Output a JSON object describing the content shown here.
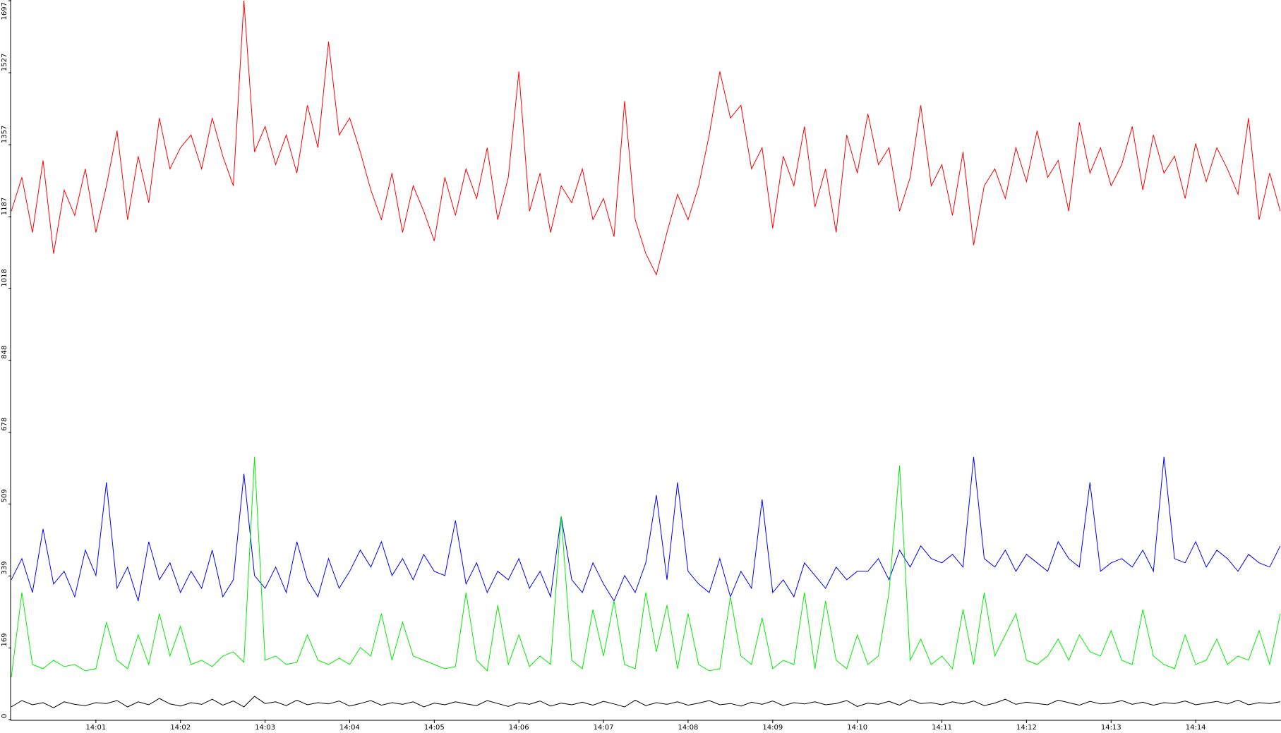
{
  "chart_data": {
    "type": "line",
    "x": [
      0,
      0.125,
      0.25,
      0.375,
      0.5,
      0.625,
      0.75,
      0.875,
      1,
      1.125,
      1.25,
      1.375,
      1.5,
      1.625,
      1.75,
      1.875,
      2,
      2.125,
      2.25,
      2.375,
      2.5,
      2.625,
      2.75,
      2.875,
      3,
      3.125,
      3.25,
      3.375,
      3.5,
      3.625,
      3.75,
      3.875,
      4,
      4.125,
      4.25,
      4.375,
      4.5,
      4.625,
      4.75,
      4.875,
      5,
      5.125,
      5.25,
      5.375,
      5.5,
      5.625,
      5.75,
      5.875,
      6,
      6.125,
      6.25,
      6.375,
      6.5,
      6.625,
      6.75,
      6.875,
      7,
      7.125,
      7.25,
      7.375,
      7.5,
      7.625,
      7.75,
      7.875,
      8,
      8.125,
      8.25,
      8.375,
      8.5,
      8.625,
      8.75,
      8.875,
      9,
      9.125,
      9.25,
      9.375,
      9.5,
      9.625,
      9.75,
      9.875,
      10,
      10.125,
      10.25,
      10.375,
      10.5,
      10.625,
      10.75,
      10.875,
      11,
      11.125,
      11.25,
      11.375,
      11.5,
      11.625,
      11.75,
      11.875,
      12,
      12.125,
      12.25,
      12.375,
      12.5,
      12.625,
      12.75,
      12.875,
      13,
      13.125,
      13.25,
      13.375,
      13.5,
      13.625,
      13.75,
      13.875,
      14,
      14.125,
      14.25,
      14.375,
      14.5,
      14.625,
      14.75,
      14.875,
      15
    ],
    "series": [
      {
        "color": "#ff0000",
        "values": [
          1200,
          1280,
          1150,
          1320,
          1100,
          1250,
          1190,
          1300,
          1150,
          1260,
          1390,
          1180,
          1330,
          1220,
          1420,
          1300,
          1350,
          1380,
          1300,
          1420,
          1330,
          1260,
          1697,
          1340,
          1400,
          1310,
          1380,
          1290,
          1450,
          1350,
          1600,
          1380,
          1420,
          1340,
          1250,
          1180,
          1290,
          1150,
          1260,
          1200,
          1130,
          1280,
          1190,
          1300,
          1230,
          1350,
          1180,
          1280,
          1530,
          1200,
          1290,
          1150,
          1260,
          1220,
          1300,
          1180,
          1230,
          1140,
          1460,
          1180,
          1100,
          1050,
          1150,
          1240,
          1180,
          1260,
          1380,
          1530,
          1420,
          1450,
          1300,
          1350,
          1160,
          1330,
          1260,
          1400,
          1210,
          1300,
          1150,
          1380,
          1290,
          1430,
          1310,
          1350,
          1200,
          1280,
          1450,
          1260,
          1310,
          1190,
          1340,
          1120,
          1260,
          1300,
          1230,
          1350,
          1270,
          1390,
          1280,
          1320,
          1200,
          1410,
          1290,
          1350,
          1260,
          1310,
          1400,
          1250,
          1380,
          1290,
          1330,
          1230,
          1360,
          1270,
          1350,
          1300,
          1240,
          1420,
          1180,
          1290,
          1200
        ]
      },
      {
        "color": "#0000ff",
        "values": [
          330,
          380,
          300,
          450,
          320,
          350,
          290,
          400,
          340,
          560,
          310,
          360,
          280,
          420,
          330,
          370,
          300,
          350,
          310,
          400,
          290,
          330,
          580,
          340,
          310,
          360,
          300,
          420,
          330,
          290,
          380,
          310,
          350,
          400,
          360,
          420,
          340,
          380,
          330,
          390,
          350,
          340,
          470,
          320,
          370,
          300,
          350,
          330,
          380,
          310,
          350,
          290,
          480,
          330,
          300,
          370,
          320,
          280,
          340,
          300,
          370,
          530,
          330,
          560,
          350,
          320,
          300,
          380,
          290,
          350,
          310,
          520,
          300,
          330,
          290,
          370,
          340,
          310,
          360,
          330,
          350,
          350,
          380,
          330,
          400,
          360,
          410,
          380,
          370,
          390,
          360,
          620,
          380,
          360,
          400,
          350,
          390,
          370,
          350,
          420,
          380,
          360,
          560,
          350,
          370,
          380,
          360,
          400,
          350,
          620,
          380,
          370,
          420,
          360,
          400,
          380,
          350,
          390,
          370,
          360,
          410
        ]
      },
      {
        "color": "#00ee00",
        "values": [
          100,
          300,
          130,
          120,
          140,
          125,
          130,
          115,
          120,
          230,
          140,
          120,
          200,
          130,
          250,
          150,
          220,
          130,
          140,
          125,
          150,
          160,
          135,
          620,
          140,
          150,
          130,
          135,
          200,
          140,
          130,
          145,
          130,
          170,
          150,
          250,
          140,
          230,
          150,
          140,
          130,
          120,
          125,
          300,
          140,
          115,
          270,
          130,
          200,
          125,
          150,
          130,
          480,
          140,
          120,
          260,
          150,
          280,
          130,
          120,
          300,
          160,
          270,
          120,
          250,
          130,
          115,
          120,
          290,
          150,
          130,
          240,
          120,
          140,
          130,
          300,
          120,
          280,
          140,
          120,
          200,
          130,
          150,
          300,
          600,
          140,
          190,
          130,
          150,
          120,
          260,
          130,
          300,
          150,
          200,
          250,
          140,
          130,
          150,
          190,
          140,
          200,
          160,
          150,
          210,
          140,
          130,
          260,
          150,
          130,
          120,
          200,
          130,
          140,
          190,
          130,
          150,
          140,
          210,
          130,
          250
        ]
      },
      {
        "color": "#000000",
        "values": [
          30,
          45,
          35,
          40,
          28,
          42,
          36,
          33,
          40,
          38,
          45,
          30,
          42,
          35,
          50,
          37,
          32,
          40,
          36,
          48,
          34,
          44,
          30,
          55,
          38,
          42,
          33,
          46,
          35,
          40,
          37,
          44,
          32,
          38,
          45,
          34,
          40,
          36,
          42,
          30,
          39,
          35,
          42,
          37,
          33,
          45,
          38,
          31,
          40,
          36,
          44,
          32,
          39,
          35,
          41,
          34,
          43,
          37,
          30,
          46,
          33,
          40,
          36,
          42,
          34,
          39,
          45,
          35,
          38,
          32,
          41,
          36,
          44,
          33,
          40,
          37,
          42,
          35,
          38,
          45,
          31,
          39,
          36,
          43,
          34,
          47,
          38,
          40,
          35,
          42,
          37,
          44,
          33,
          39,
          48,
          36,
          41,
          38,
          35,
          46,
          40,
          34,
          43,
          37,
          39,
          45,
          36,
          41,
          34,
          40,
          38,
          44,
          35,
          39,
          43,
          37,
          46,
          35,
          40,
          38,
          42
        ]
      }
    ],
    "xlim": [
      0,
      15
    ],
    "xticks": [
      {
        "value": 1,
        "label": "14:01"
      },
      {
        "value": 2,
        "label": "14:02"
      },
      {
        "value": 3,
        "label": "14:03"
      },
      {
        "value": 4,
        "label": "14:04"
      },
      {
        "value": 5,
        "label": "14:05"
      },
      {
        "value": 6,
        "label": "14:06"
      },
      {
        "value": 7,
        "label": "14:07"
      },
      {
        "value": 8,
        "label": "14:08"
      },
      {
        "value": 9,
        "label": "14:09"
      },
      {
        "value": 10,
        "label": "14:10"
      },
      {
        "value": 11,
        "label": "14:11"
      },
      {
        "value": 12,
        "label": "14:12"
      },
      {
        "value": 13,
        "label": "14:13"
      },
      {
        "value": 14,
        "label": "14:14"
      }
    ],
    "ylim": [
      0,
      1697
    ],
    "yticks": [
      0,
      169,
      339,
      509,
      678,
      848,
      1018,
      1187,
      1357,
      1527,
      1697
    ]
  }
}
